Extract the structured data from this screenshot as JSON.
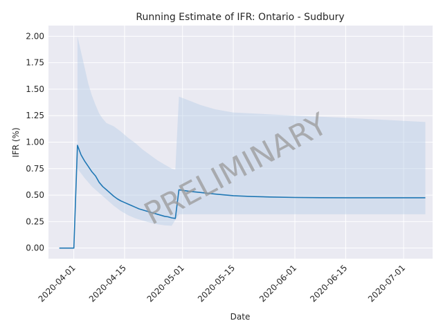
{
  "chart_data": {
    "type": "line",
    "title": "Running Estimate of IFR: Ontario - Sudbury",
    "xlabel": "Date",
    "ylabel": "IFR (%)",
    "watermark": "PRELIMINARY",
    "grid": true,
    "legend": "none",
    "xlim": [
      "2020-03-25",
      "2020-07-09"
    ],
    "ylim": [
      -0.1,
      2.1
    ],
    "x_ticks": [
      "2020-04-01",
      "2020-04-15",
      "2020-05-01",
      "2020-05-15",
      "2020-06-01",
      "2020-06-15",
      "2020-07-01"
    ],
    "y_ticks": [
      0.0,
      0.25,
      0.5,
      0.75,
      1.0,
      1.25,
      1.5,
      1.75,
      2.0
    ],
    "y_tick_labels": [
      "0.00",
      "0.25",
      "0.50",
      "0.75",
      "1.00",
      "1.25",
      "1.50",
      "1.75",
      "2.00"
    ],
    "colors": {
      "line": "#1f77b4",
      "band": "#b9cfe6",
      "plot_background": "#eaeaf2",
      "grid": "#ffffff"
    },
    "series": [
      {
        "values": [
          [
            "2020-03-28",
            0.0
          ],
          [
            "2020-03-29",
            0.0
          ],
          [
            "2020-03-30",
            0.0
          ],
          [
            "2020-03-31",
            0.0
          ],
          [
            "2020-04-01",
            0.0
          ],
          [
            "2020-04-02",
            0.97
          ],
          [
            "2020-04-03",
            0.88
          ],
          [
            "2020-04-04",
            0.82
          ],
          [
            "2020-04-05",
            0.77
          ],
          [
            "2020-04-06",
            0.72
          ],
          [
            "2020-04-07",
            0.68
          ],
          [
            "2020-04-08",
            0.62
          ],
          [
            "2020-04-09",
            0.58
          ],
          [
            "2020-04-10",
            0.55
          ],
          [
            "2020-04-11",
            0.52
          ],
          [
            "2020-04-12",
            0.49
          ],
          [
            "2020-04-13",
            0.465
          ],
          [
            "2020-04-14",
            0.445
          ],
          [
            "2020-04-15",
            0.43
          ],
          [
            "2020-04-16",
            0.415
          ],
          [
            "2020-04-17",
            0.4
          ],
          [
            "2020-04-18",
            0.385
          ],
          [
            "2020-04-19",
            0.37
          ],
          [
            "2020-04-20",
            0.36
          ],
          [
            "2020-04-21",
            0.35
          ],
          [
            "2020-04-22",
            0.34
          ],
          [
            "2020-04-23",
            0.33
          ],
          [
            "2020-04-24",
            0.32
          ],
          [
            "2020-04-25",
            0.31
          ],
          [
            "2020-04-26",
            0.3
          ],
          [
            "2020-04-27",
            0.295
          ],
          [
            "2020-04-28",
            0.285
          ],
          [
            "2020-04-29",
            0.28
          ],
          [
            "2020-04-30",
            0.55
          ],
          [
            "2020-05-03",
            0.535
          ],
          [
            "2020-05-06",
            0.525
          ],
          [
            "2020-05-10",
            0.51
          ],
          [
            "2020-05-15",
            0.495
          ],
          [
            "2020-05-20",
            0.487
          ],
          [
            "2020-05-25",
            0.482
          ],
          [
            "2020-06-01",
            0.478
          ],
          [
            "2020-06-08",
            0.476
          ],
          [
            "2020-06-15",
            0.475
          ],
          [
            "2020-06-22",
            0.475
          ],
          [
            "2020-07-01",
            0.475
          ],
          [
            "2020-07-07",
            0.475
          ]
        ]
      }
    ],
    "band": {
      "upper": [
        [
          "2020-04-02",
          2.0
        ],
        [
          "2020-04-03",
          1.85
        ],
        [
          "2020-04-04",
          1.7
        ],
        [
          "2020-04-05",
          1.55
        ],
        [
          "2020-04-06",
          1.44
        ],
        [
          "2020-04-07",
          1.35
        ],
        [
          "2020-04-08",
          1.27
        ],
        [
          "2020-04-09",
          1.22
        ],
        [
          "2020-04-10",
          1.18
        ],
        [
          "2020-04-12",
          1.15
        ],
        [
          "2020-04-14",
          1.1
        ],
        [
          "2020-04-16",
          1.04
        ],
        [
          "2020-04-18",
          0.99
        ],
        [
          "2020-04-20",
          0.93
        ],
        [
          "2020-04-22",
          0.88
        ],
        [
          "2020-04-24",
          0.83
        ],
        [
          "2020-04-26",
          0.79
        ],
        [
          "2020-04-28",
          0.75
        ],
        [
          "2020-04-29",
          0.74
        ],
        [
          "2020-04-30",
          1.43
        ],
        [
          "2020-05-03",
          1.39
        ],
        [
          "2020-05-06",
          1.35
        ],
        [
          "2020-05-10",
          1.31
        ],
        [
          "2020-05-15",
          1.28
        ],
        [
          "2020-06-01",
          1.25
        ],
        [
          "2020-06-15",
          1.23
        ],
        [
          "2020-07-07",
          1.19
        ]
      ],
      "lower": [
        [
          "2020-04-02",
          0.75
        ],
        [
          "2020-04-04",
          0.66
        ],
        [
          "2020-04-06",
          0.58
        ],
        [
          "2020-04-08",
          0.52
        ],
        [
          "2020-04-10",
          0.46
        ],
        [
          "2020-04-12",
          0.4
        ],
        [
          "2020-04-14",
          0.35
        ],
        [
          "2020-04-16",
          0.31
        ],
        [
          "2020-04-18",
          0.28
        ],
        [
          "2020-04-20",
          0.26
        ],
        [
          "2020-04-22",
          0.24
        ],
        [
          "2020-04-24",
          0.225
        ],
        [
          "2020-04-26",
          0.215
        ],
        [
          "2020-04-28",
          0.21
        ],
        [
          "2020-04-30",
          0.32
        ],
        [
          "2020-05-15",
          0.32
        ],
        [
          "2020-06-01",
          0.32
        ],
        [
          "2020-07-07",
          0.32
        ]
      ]
    }
  }
}
